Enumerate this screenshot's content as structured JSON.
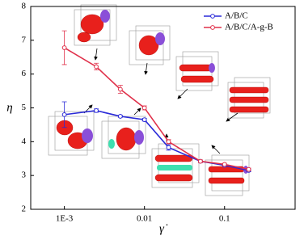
{
  "chart_data": {
    "type": "line",
    "log_x": true,
    "x_label": "γ̇",
    "y_label": "η",
    "x": [
      0.001,
      0.0025,
      0.005,
      0.01,
      0.02,
      0.05,
      0.1,
      0.2
    ],
    "series": [
      {
        "name": "A/B/C",
        "color": "#2a2ad8",
        "values": [
          4.8,
          4.92,
          4.75,
          4.65,
          3.83,
          3.42,
          3.3,
          3.15
        ],
        "errors": [
          0.38,
          0.05,
          0.03,
          0.04,
          0.08,
          0.04,
          0.03,
          0.04
        ]
      },
      {
        "name": "A/B/C/A-g-B",
        "color": "#e0304a",
        "values": [
          6.78,
          6.22,
          5.55,
          5.0,
          4.0,
          3.42,
          3.33,
          3.18
        ],
        "errors": [
          0.5,
          0.1,
          0.12,
          0.06,
          0.06,
          0.04,
          0.03,
          0.04
        ]
      }
    ],
    "xlim": [
      0.00038,
      0.76
    ],
    "ylim": [
      2,
      8
    ],
    "xticks": [
      {
        "value": 0.001,
        "label": "1E-3"
      },
      0.01,
      0.1
    ],
    "yticks": [
      2,
      3,
      4,
      5,
      6,
      7,
      8
    ],
    "legend": "top-right"
  }
}
